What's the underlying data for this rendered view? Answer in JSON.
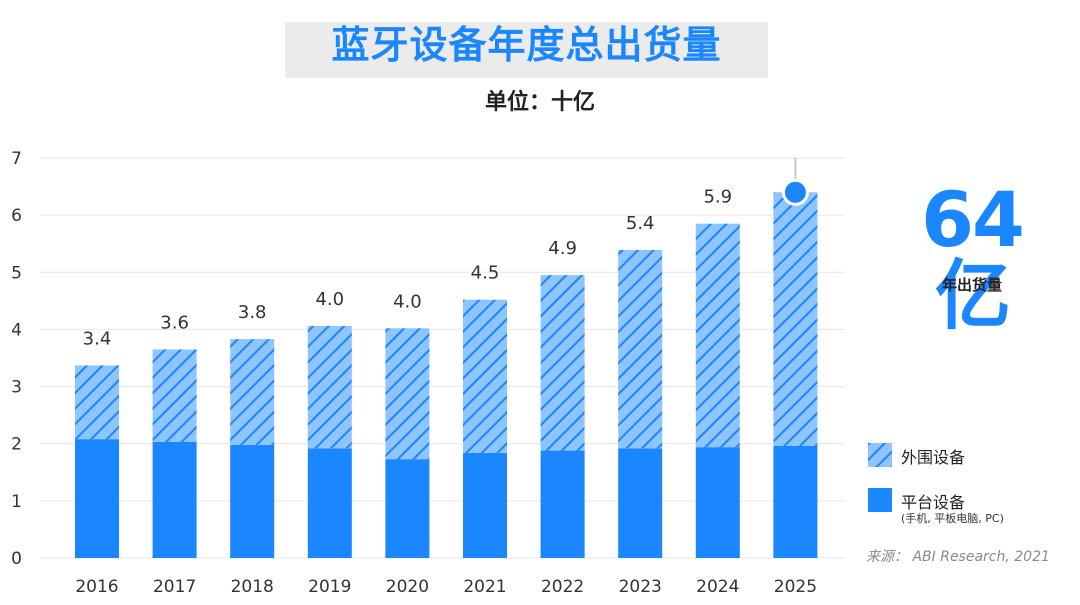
{
  "title": "蓝牙设备年度总出货量",
  "subtitle": "单位：十亿",
  "highlight": {
    "value": "64亿",
    "label": "年出货量"
  },
  "legend": {
    "peripheral": "外围设备",
    "platform": "平台设备",
    "platform_note": "(手机, 平板电脑, PC)"
  },
  "source": "来源：  ABI Research, 2021",
  "colors": {
    "primary": "#1a86ff",
    "hatch_bg": "#8ec4ff",
    "hatch_line": "#1a86ff",
    "grid": "#e6e6e6"
  },
  "chart_data": {
    "type": "bar",
    "stacked": true,
    "categories": [
      "2016",
      "2017",
      "2018",
      "2019",
      "2020",
      "2021",
      "2022",
      "2023",
      "2024",
      "2025"
    ],
    "series": [
      {
        "name": "平台设备",
        "values": [
          2.08,
          2.03,
          1.98,
          1.92,
          1.73,
          1.84,
          1.88,
          1.92,
          1.94,
          1.96
        ]
      },
      {
        "name": "外围设备",
        "values": [
          1.29,
          1.62,
          1.85,
          2.14,
          2.29,
          2.68,
          3.07,
          3.47,
          3.91,
          4.44
        ]
      }
    ],
    "totals_labels": [
      "3.4",
      "3.6",
      "3.8",
      "4.0",
      "4.0",
      "4.5",
      "4.9",
      "5.4",
      "5.9",
      ""
    ],
    "ylim": [
      0,
      7
    ],
    "yticks": [
      "0",
      "1",
      "2",
      "3",
      "4",
      "5",
      "6",
      "7"
    ],
    "grid": true
  }
}
